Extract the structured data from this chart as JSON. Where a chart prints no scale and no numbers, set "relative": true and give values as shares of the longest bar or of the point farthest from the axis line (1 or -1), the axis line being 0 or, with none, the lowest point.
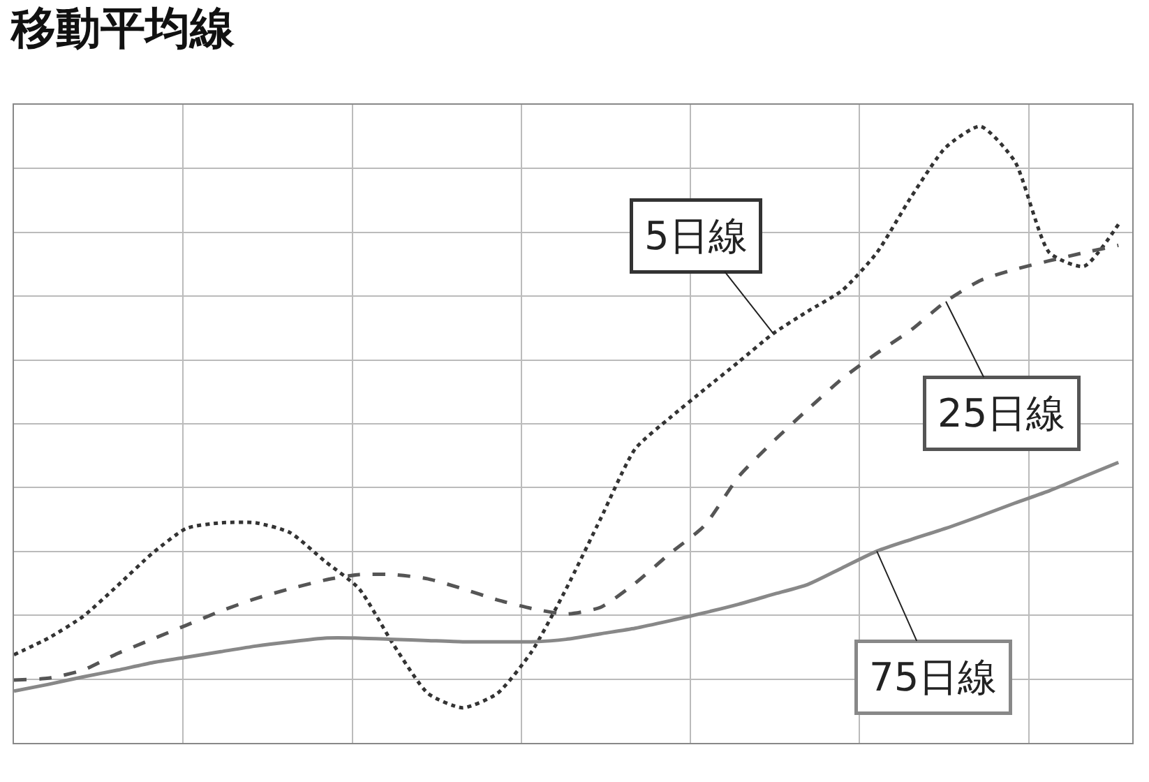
{
  "chart_data": {
    "type": "line",
    "title": "移動平均線",
    "relative": true,
    "grid": true,
    "legend": false,
    "marker": "none",
    "categories": [
      null,
      null,
      null,
      null,
      null,
      null,
      null,
      null,
      null,
      null,
      null,
      null,
      null,
      null,
      null,
      null,
      null,
      null,
      null,
      null,
      null,
      null,
      null,
      null,
      null,
      null,
      null,
      null,
      null,
      null,
      null,
      null,
      null
    ],
    "series": [
      {
        "name": "5日線",
        "color": "#333333",
        "line_style": "dotted",
        "values": [
          0.143,
          0.17,
          0.205,
          0.255,
          0.307,
          0.348,
          0.357,
          0.357,
          0.341,
          0.295,
          0.25,
          0.159,
          0.08,
          0.057,
          0.08,
          0.148,
          0.25,
          0.364,
          0.477,
          0.527,
          0.573,
          0.618,
          0.664,
          0.7,
          0.734,
          0.795,
          0.886,
          0.966,
          1,
          0.943,
          0.795,
          0.773,
          0.841
        ]
      },
      {
        "name": "25日線",
        "color": "#555555",
        "line_style": "dashed",
        "values": [
          0.102,
          0.105,
          0.118,
          0.145,
          0.168,
          0.191,
          0.214,
          0.234,
          0.25,
          0.264,
          0.273,
          0.273,
          0.266,
          0.25,
          0.232,
          0.218,
          0.209,
          0.22,
          0.259,
          0.307,
          0.352,
          0.432,
          0.489,
          0.541,
          0.591,
          0.632,
          0.67,
          0.716,
          0.75,
          0.768,
          0.782,
          0.795,
          0.807
        ]
      },
      {
        "name": "75日線",
        "color": "#888888",
        "line_style": "solid",
        "values": [
          0.084,
          0.095,
          0.107,
          0.118,
          0.13,
          0.139,
          0.148,
          0.157,
          0.164,
          0.17,
          0.17,
          0.168,
          0.166,
          0.164,
          0.164,
          0.164,
          0.168,
          0.177,
          0.186,
          0.198,
          0.211,
          0.225,
          0.241,
          0.257,
          0.284,
          0.311,
          0.33,
          0.348,
          0.368,
          0.389,
          0.409,
          0.432,
          0.455
        ]
      }
    ]
  }
}
